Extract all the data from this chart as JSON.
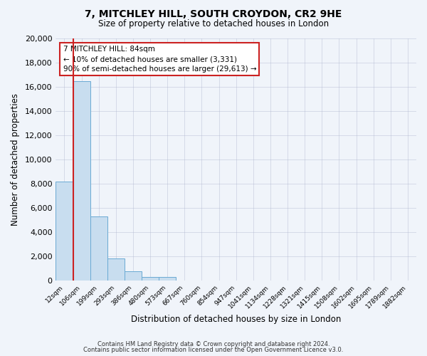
{
  "title": "7, MITCHLEY HILL, SOUTH CROYDON, CR2 9HE",
  "subtitle": "Size of property relative to detached houses in London",
  "xlabel": "Distribution of detached houses by size in London",
  "ylabel": "Number of detached properties",
  "bar_color": "#c8ddef",
  "bar_edgecolor": "#6aaad4",
  "background_color": "#f0f4fa",
  "plot_bg_color": "#f0f4fa",
  "categories": [
    "12sqm",
    "106sqm",
    "199sqm",
    "293sqm",
    "386sqm",
    "480sqm",
    "573sqm",
    "667sqm",
    "760sqm",
    "854sqm",
    "947sqm",
    "1041sqm",
    "1134sqm",
    "1228sqm",
    "1321sqm",
    "1415sqm",
    "1508sqm",
    "1602sqm",
    "1695sqm",
    "1789sqm",
    "1882sqm"
  ],
  "values": [
    8200,
    16500,
    5300,
    1800,
    750,
    280,
    280,
    0,
    0,
    0,
    0,
    0,
    0,
    0,
    0,
    0,
    0,
    0,
    0,
    0,
    0
  ],
  "ylim": [
    0,
    20000
  ],
  "yticks": [
    0,
    2000,
    4000,
    6000,
    8000,
    10000,
    12000,
    14000,
    16000,
    18000,
    20000
  ],
  "marker_label": "7 MITCHLEY HILL: 84sqm",
  "annotation_line1": "← 10% of detached houses are smaller (3,331)",
  "annotation_line2": "90% of semi-detached houses are larger (29,613) →",
  "footer_line1": "Contains HM Land Registry data © Crown copyright and database right 2024.",
  "footer_line2": "Contains public sector information licensed under the Open Government Licence v3.0.",
  "red_line_color": "#cc2222",
  "annotation_box_edgecolor": "#cc2222",
  "annotation_box_facecolor": "#ffffff",
  "grid_color": "#b0b8d0",
  "figsize": [
    6.0,
    5.0
  ],
  "dpi": 100
}
